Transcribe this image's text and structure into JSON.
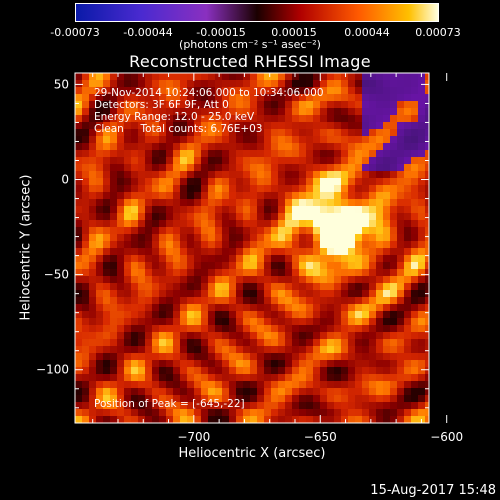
{
  "colorbar": {
    "tick_labels": [
      "-0.00073",
      "-0.00044",
      "-0.00015",
      "0.00015",
      "0.00044",
      "0.00073"
    ],
    "unit": "(photons cm⁻² s⁻¹ asec⁻²)"
  },
  "chart_data": {
    "type": "heatmap",
    "title": "Reconstructed RHESSI Image",
    "xlabel": "Heliocentric X (arcsec)",
    "ylabel": "Heliocentric Y (arcsec)",
    "xlim": [
      -747,
      -607
    ],
    "ylim": [
      -128,
      56
    ],
    "x_ticks": [
      -700,
      -650,
      -600
    ],
    "x_tick_labels": [
      "−700",
      "−650",
      "−600"
    ],
    "y_ticks": [
      50,
      0,
      -50,
      -100
    ],
    "y_tick_labels": [
      "50",
      "0",
      "−50",
      "−100"
    ],
    "colorbar_range": [
      -0.00073,
      0.00073
    ],
    "peak_x": -645,
    "peak_y": -22,
    "annotations": [
      "29-Nov-2014 10:24:06.000 to 10:34:06.000",
      "Detectors: 3F 6F 9F, Att 0",
      "Energy Range: 12.0 - 25.0 keV",
      "Clean     Total counts: 6.76E+03",
      "Position of Peak = [-645,-22]"
    ]
  },
  "footer": {
    "timestamp": "15-Aug-2017 15:48"
  }
}
